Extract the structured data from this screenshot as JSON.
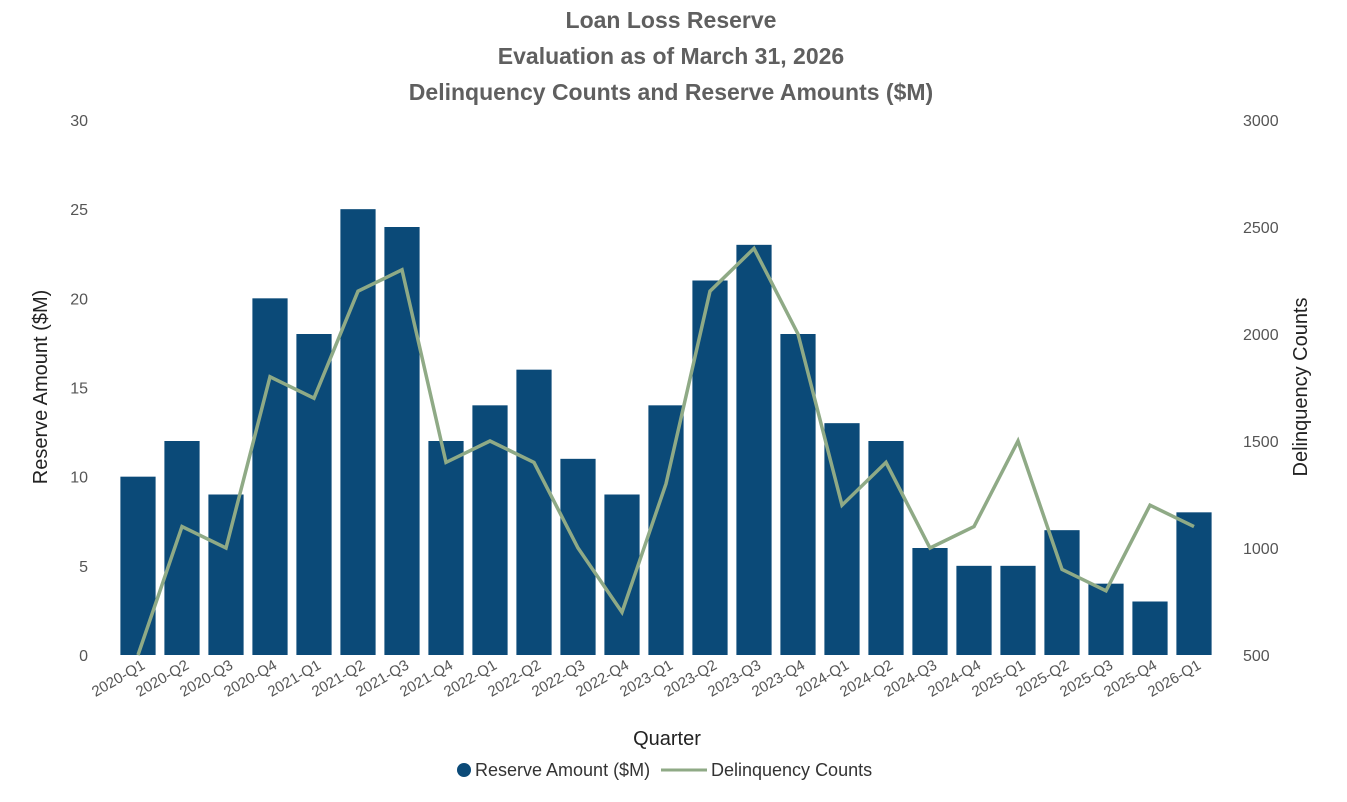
{
  "chart_data": {
    "type": "bar",
    "title_lines": [
      "Loan Loss Reserve",
      "Evaluation as of March 31, 2026",
      "Delinquency Counts and Reserve Amounts ($M)"
    ],
    "xlabel": "Quarter",
    "ylabel": "Reserve Amount ($M)",
    "y2label": "Delinquency Counts",
    "ylim": [
      0,
      30
    ],
    "y2lim": [
      500,
      3000
    ],
    "yticks": [
      0,
      5,
      10,
      15,
      20,
      25,
      30
    ],
    "y2ticks": [
      500,
      1000,
      1500,
      2000,
      2500,
      3000
    ],
    "grid": false,
    "legend_position": "bottom-center",
    "categories": [
      "2020-Q1",
      "2020-Q2",
      "2020-Q3",
      "2020-Q4",
      "2021-Q1",
      "2021-Q2",
      "2021-Q3",
      "2021-Q4",
      "2022-Q1",
      "2022-Q2",
      "2022-Q3",
      "2022-Q4",
      "2023-Q1",
      "2023-Q2",
      "2023-Q3",
      "2023-Q4",
      "2024-Q1",
      "2024-Q2",
      "2024-Q3",
      "2024-Q4",
      "2025-Q1",
      "2025-Q2",
      "2025-Q3",
      "2025-Q4",
      "2026-Q1"
    ],
    "series": [
      {
        "name": "Reserve Amount ($M)",
        "type": "bar",
        "axis": "left",
        "color": "#0b4a78",
        "values": [
          10,
          12,
          9,
          20,
          18,
          25,
          24,
          12,
          14,
          16,
          11,
          9,
          14,
          21,
          23,
          18,
          13,
          12,
          6,
          5,
          5,
          7,
          4,
          3,
          8
        ]
      },
      {
        "name": "Delinquency Counts",
        "type": "line",
        "axis": "right",
        "color": "#8faa86",
        "values": [
          500,
          1100,
          1000,
          1800,
          1700,
          2200,
          2300,
          1400,
          1500,
          1400,
          1000,
          700,
          1300,
          2200,
          2400,
          2000,
          1200,
          1400,
          1000,
          1100,
          1500,
          900,
          800,
          1200,
          1100
        ]
      }
    ]
  }
}
